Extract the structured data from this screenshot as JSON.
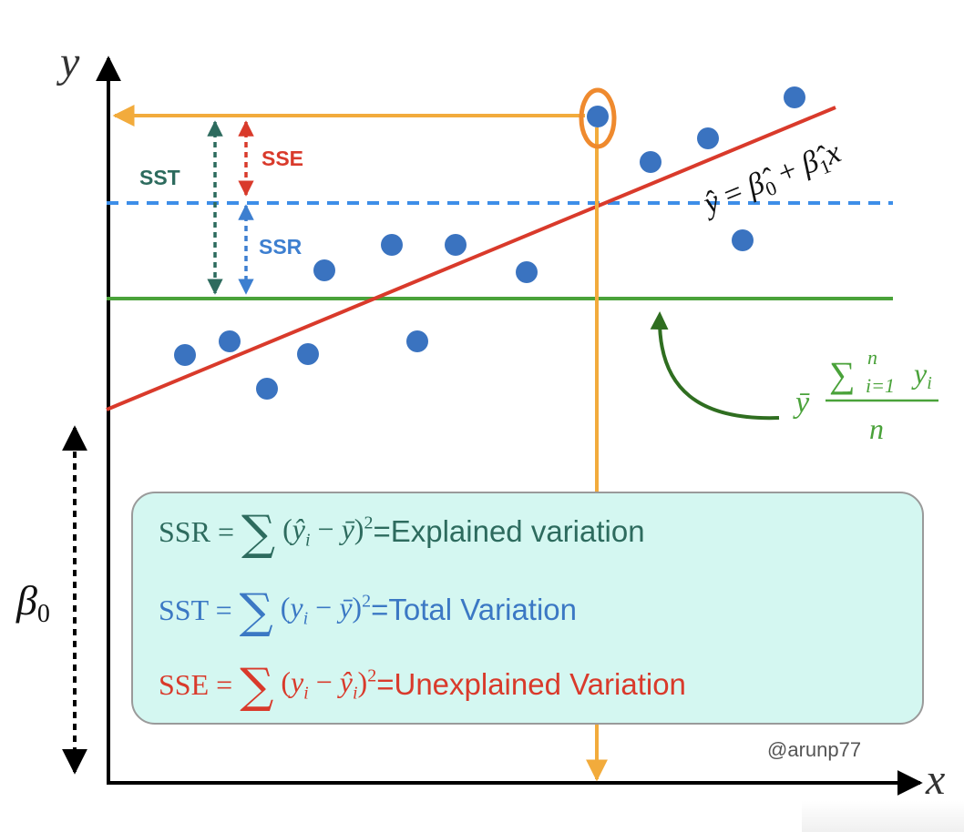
{
  "axes": {
    "y_label": "y",
    "x_label": "x",
    "intercept_label": "β",
    "intercept_sub": "0"
  },
  "labels": {
    "sst": "SST",
    "sse": "SSE",
    "ssr": "SSR"
  },
  "regression_eq": {
    "lhs": "ŷ",
    "eq": " = ",
    "b0": "β̂",
    "b0_sub": "0",
    "plus": " + ",
    "b1": "β̂",
    "b1_sub": "1",
    "x": "x"
  },
  "mean_eq": {
    "ybar": "ȳ",
    "sigma": "∑",
    "sub": "i=1",
    "sup": "n",
    "var": "y",
    "var_sub": "i",
    "denom": "n"
  },
  "formulas": [
    {
      "lhs": "SSR = ",
      "sigma": "∑",
      "body_open": " (",
      "a": "ŷ",
      "a_sub": "i",
      "op": " − ",
      "b": "ȳ",
      "b_sub": "",
      "close": ")",
      "pow": "2",
      "eq": " = ",
      "desc": "Explained variation",
      "color": "#2d6b5e"
    },
    {
      "lhs": "SST = ",
      "sigma": "∑",
      "body_open": " (",
      "a": "y",
      "a_sub": "i",
      "op": " − ",
      "b": "ȳ",
      "b_sub": "",
      "close": ")",
      "pow": "2",
      "eq": " = ",
      "desc": "Total Variation",
      "color": "#3b78c4"
    },
    {
      "lhs": "SSE = ",
      "sigma": "∑",
      "body_open": " (",
      "a": "y",
      "a_sub": "i",
      "op": " − ",
      "b": "ŷ",
      "b_sub": "i",
      "close": ")",
      "pow": "2",
      "eq": " = ",
      "desc": "Unexplained Variation",
      "color": "#d93a2b"
    }
  ],
  "credit": "@arunp77",
  "colors": {
    "axis": "#000000",
    "points": "#3a73c0",
    "regression": "#d93a2b",
    "mean": "#4aa23a",
    "fitted_level": "#3d8ee8",
    "highlight": "#ef8a2e",
    "projection": "#f2ab3c",
    "sst": "#2d6b5e",
    "sse": "#d93a2b",
    "ssr": "#3d7fd0",
    "mean_label": "#4aa23a",
    "curve_arrow": "#2f6e20"
  }
}
